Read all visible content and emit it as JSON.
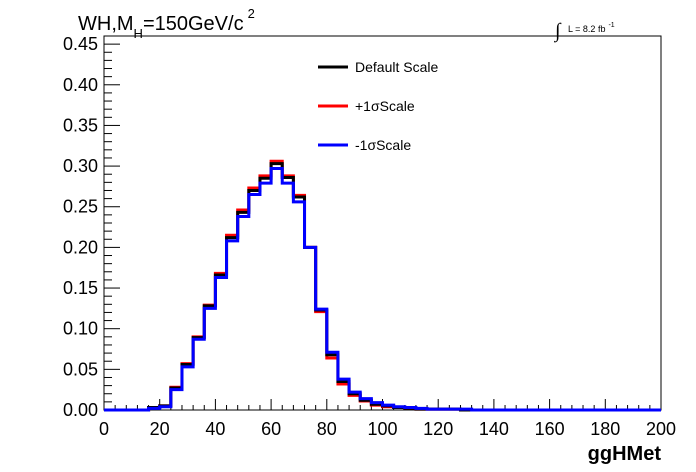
{
  "chart_data": {
    "type": "line",
    "title": {
      "prefix": "WH,M",
      "subscript": "H",
      "main": "=150GeV/c",
      "superscript": "2"
    },
    "lumi": {
      "integral": "∫",
      "text": "L = 8.2 fb",
      "superscript": "-1"
    },
    "xlabel": "ggHMet",
    "ylabel": "",
    "xlim": [
      0,
      200
    ],
    "ylim": [
      0,
      0.46
    ],
    "x_ticks": [
      0,
      20,
      40,
      60,
      80,
      100,
      120,
      140,
      160,
      180,
      200
    ],
    "x_tick_labels": [
      "0",
      "20",
      "40",
      "60",
      "80",
      "100",
      "120",
      "140",
      "160",
      "180",
      "200"
    ],
    "y_ticks": [
      0,
      0.05,
      0.1,
      0.15,
      0.2,
      0.25,
      0.3,
      0.35,
      0.4,
      0.45
    ],
    "y_tick_labels": [
      "0.00",
      "0.05",
      "0.10",
      "0.15",
      "0.20",
      "0.25",
      "0.30",
      "0.35",
      "0.40",
      "0.45"
    ],
    "grid": false,
    "legend_position": "top-center",
    "bin_width": 4,
    "bin_edges_start": 0,
    "series": [
      {
        "name": "Default Scale",
        "color": "#000000",
        "values": [
          0,
          0,
          0,
          0,
          0.003,
          0.005,
          0.027,
          0.056,
          0.089,
          0.128,
          0.166,
          0.212,
          0.243,
          0.27,
          0.285,
          0.303,
          0.286,
          0.262,
          0.2,
          0.123,
          0.068,
          0.035,
          0.02,
          0.012,
          0.007,
          0.005,
          0.003,
          0.002,
          0.001,
          0.001,
          0.001,
          0.001,
          0,
          0,
          0,
          0,
          0,
          0,
          0,
          0,
          0,
          0,
          0,
          0,
          0,
          0,
          0,
          0,
          0,
          0
        ]
      },
      {
        "name": "+1σScale",
        "color": "#ff0000",
        "values": [
          0,
          0,
          0,
          0,
          0.003,
          0.005,
          0.028,
          0.057,
          0.09,
          0.129,
          0.168,
          0.215,
          0.246,
          0.273,
          0.288,
          0.306,
          0.288,
          0.264,
          0.2,
          0.121,
          0.064,
          0.032,
          0.018,
          0.011,
          0.006,
          0.004,
          0.003,
          0.002,
          0.001,
          0.001,
          0.001,
          0.001,
          0,
          0,
          0,
          0,
          0,
          0,
          0,
          0,
          0,
          0,
          0,
          0,
          0,
          0,
          0,
          0,
          0,
          0
        ]
      },
      {
        "name": "-1σScale",
        "color": "#0000ff",
        "values": [
          0,
          0,
          0,
          0,
          0.002,
          0.004,
          0.025,
          0.053,
          0.087,
          0.125,
          0.163,
          0.208,
          0.238,
          0.265,
          0.279,
          0.297,
          0.279,
          0.256,
          0.2,
          0.124,
          0.071,
          0.038,
          0.022,
          0.014,
          0.009,
          0.006,
          0.004,
          0.003,
          0.002,
          0.001,
          0.001,
          0.001,
          0.001,
          0,
          0,
          0,
          0,
          0,
          0,
          0,
          0,
          0,
          0,
          0,
          0,
          0,
          0,
          0,
          0,
          0
        ]
      }
    ]
  }
}
